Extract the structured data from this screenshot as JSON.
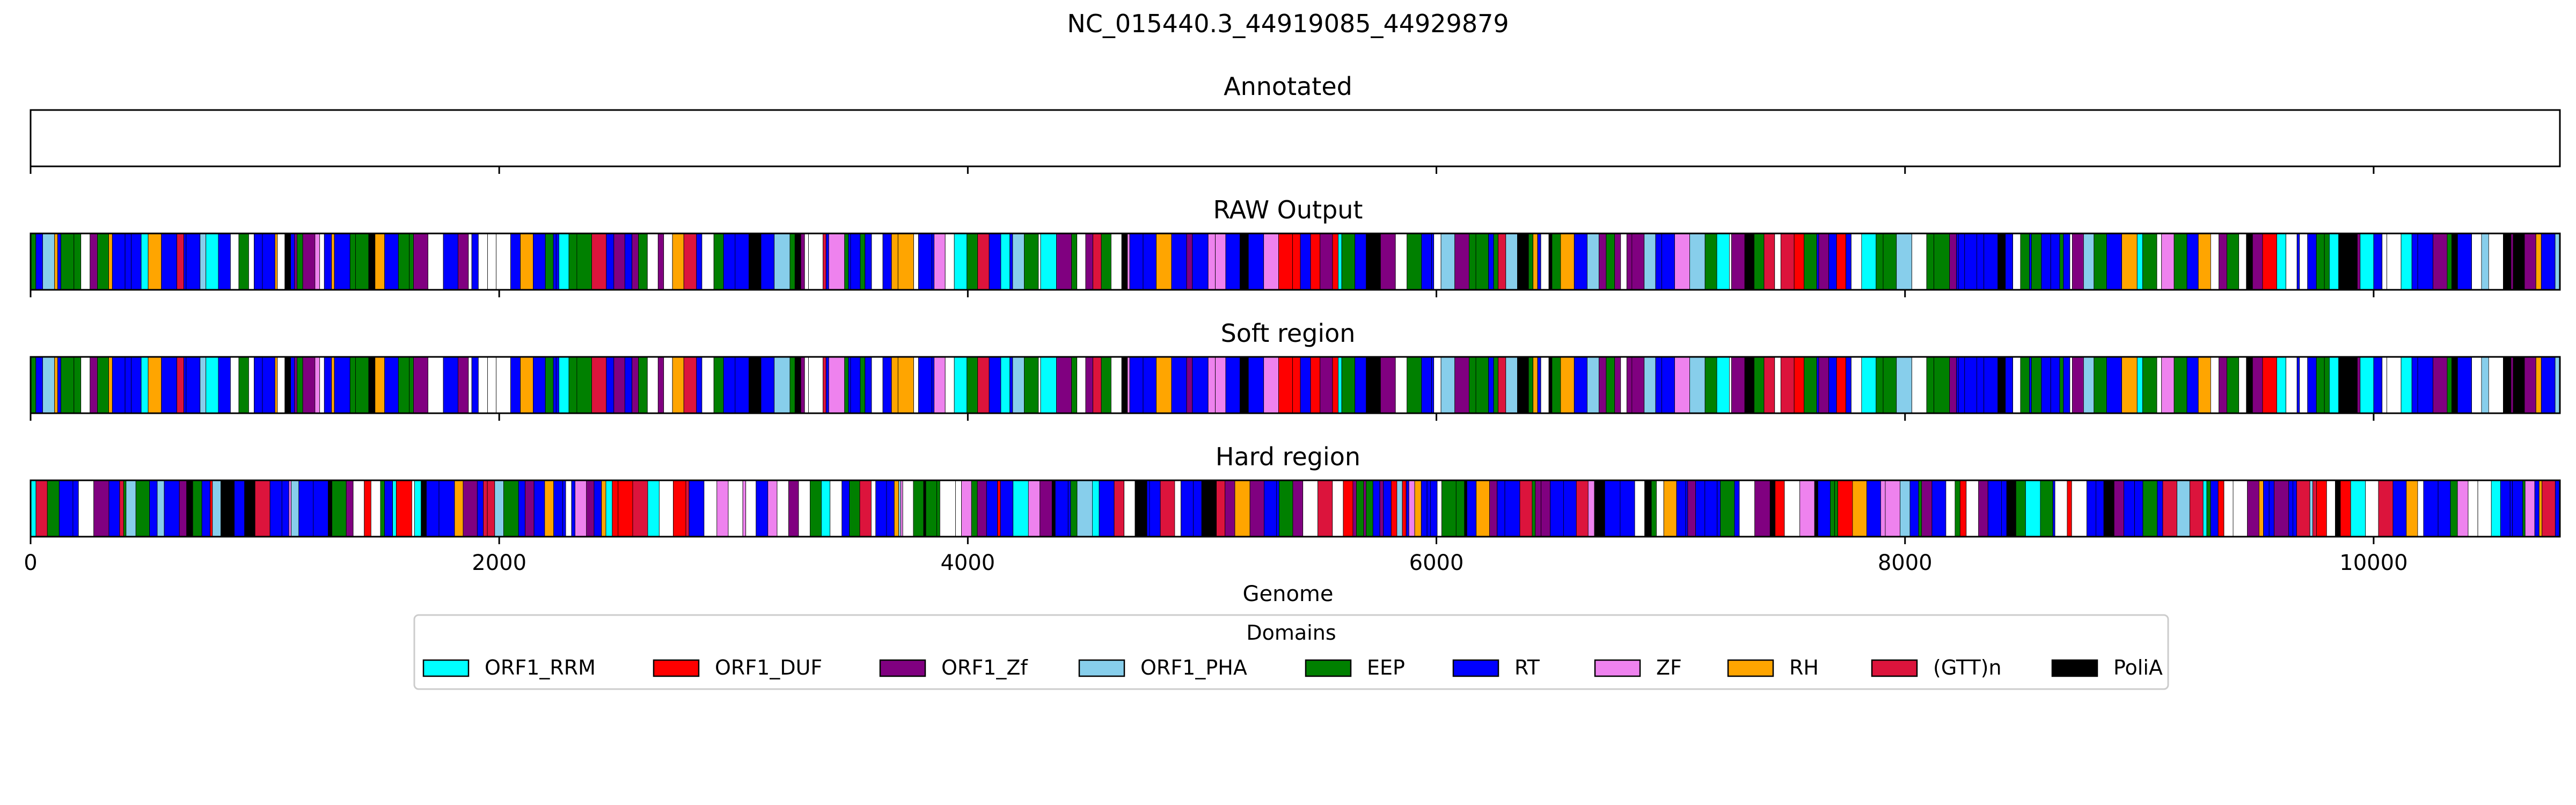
{
  "figure": {
    "title": "NC_015440.3_44919085_44929879"
  },
  "chart_data": {
    "type": "track",
    "xlabel": "Genome",
    "xlim": [
      0,
      10795
    ],
    "xticks": [
      0,
      2000,
      4000,
      6000,
      8000,
      10000
    ],
    "tracks": [
      {
        "title": "Annotated",
        "segments": []
      },
      {
        "title": "RAW Output",
        "segments": [],
        "note_pattern_seed": 11
      },
      {
        "title": "Soft region",
        "segments": [],
        "note_pattern_seed": 11
      },
      {
        "title": "Hard region",
        "segments": [],
        "note_pattern_seed": 29
      }
    ],
    "legend": {
      "title": "Domains",
      "placement": "bottom-center",
      "entries": [
        {
          "label": "ORF1_RRM",
          "color": "#00ffff"
        },
        {
          "label": "ORF1_DUF",
          "color": "#ff0000"
        },
        {
          "label": "ORF1_Zf",
          "color": "#800080"
        },
        {
          "label": "ORF1_PHA",
          "color": "#87ceeb"
        },
        {
          "label": "EEP",
          "color": "#008000"
        },
        {
          "label": "RT",
          "color": "#0000ff"
        },
        {
          "label": "ZF",
          "color": "#ee82ee"
        },
        {
          "label": "RH",
          "color": "#ffa500"
        },
        {
          "label": "(GTT)n",
          "color": "#dc143c"
        },
        {
          "label": "PoliA",
          "color": "#000000"
        }
      ]
    }
  }
}
